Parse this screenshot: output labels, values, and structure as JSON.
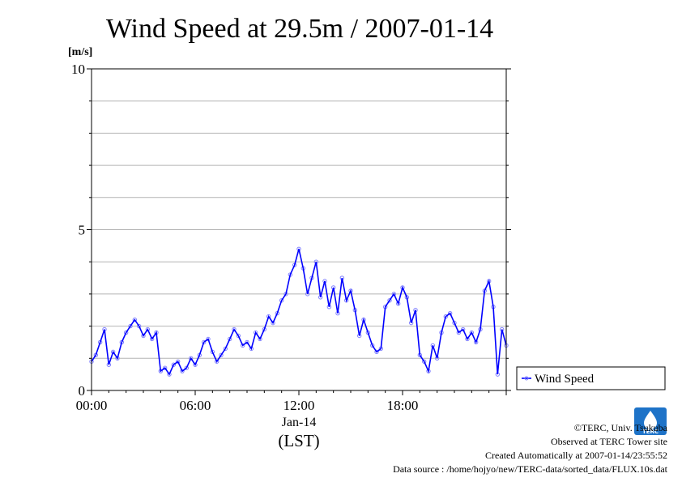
{
  "chart_data": {
    "type": "scatter",
    "title": "Wind Speed at 29.5m / 2007-01-14",
    "ylabel": "[m/s]",
    "xlabel": "(LST)",
    "date_label": "Jan-14",
    "ylim": [
      0,
      10
    ],
    "xlim": [
      0,
      24
    ],
    "yticks": [
      {
        "value": 0,
        "label": "0"
      },
      {
        "value": 5,
        "label": "5"
      },
      {
        "value": 10,
        "label": "10"
      }
    ],
    "xticks": [
      {
        "value": 0,
        "label": "00:00"
      },
      {
        "value": 6,
        "label": "06:00"
      },
      {
        "value": 12,
        "label": "12:00"
      },
      {
        "value": 18,
        "label": "18:00"
      }
    ],
    "grid": true,
    "legend": {
      "placement": "right",
      "label": "Wind Speed"
    },
    "colors": {
      "points": "#8080ff",
      "line": "#0000ff"
    },
    "series": [
      {
        "name": "Wind Speed",
        "x": [
          0.0,
          0.25,
          0.5,
          0.75,
          1.0,
          1.25,
          1.5,
          1.75,
          2.0,
          2.25,
          2.5,
          2.75,
          3.0,
          3.25,
          3.5,
          3.75,
          4.0,
          4.25,
          4.5,
          4.75,
          5.0,
          5.25,
          5.5,
          5.75,
          6.0,
          6.25,
          6.5,
          6.75,
          7.0,
          7.25,
          7.5,
          7.75,
          8.0,
          8.25,
          8.5,
          8.75,
          9.0,
          9.25,
          9.5,
          9.75,
          10.0,
          10.25,
          10.5,
          10.75,
          11.0,
          11.25,
          11.5,
          11.75,
          12.0,
          12.25,
          12.5,
          12.75,
          13.0,
          13.25,
          13.5,
          13.75,
          14.0,
          14.25,
          14.5,
          14.75,
          15.0,
          15.25,
          15.5,
          15.75,
          16.0,
          16.25,
          16.5,
          16.75,
          17.0,
          17.25,
          17.5,
          17.75,
          18.0,
          18.25,
          18.5,
          18.75,
          19.0,
          19.25,
          19.5,
          19.75,
          20.0,
          20.25,
          20.5,
          20.75,
          21.0,
          21.25,
          21.5,
          21.75,
          22.0,
          22.25,
          22.5,
          22.75,
          23.0,
          23.25,
          23.5,
          23.75,
          24.0
        ],
        "values": [
          0.9,
          1.1,
          1.5,
          1.9,
          0.8,
          1.2,
          1.0,
          1.5,
          1.8,
          2.0,
          2.2,
          2.0,
          1.7,
          1.9,
          1.6,
          1.8,
          0.6,
          0.7,
          0.5,
          0.8,
          0.9,
          0.6,
          0.7,
          1.0,
          0.8,
          1.1,
          1.5,
          1.6,
          1.2,
          0.9,
          1.1,
          1.3,
          1.6,
          1.9,
          1.7,
          1.4,
          1.5,
          1.3,
          1.8,
          1.6,
          1.9,
          2.3,
          2.1,
          2.4,
          2.8,
          3.0,
          3.6,
          3.9,
          4.4,
          3.8,
          3.0,
          3.5,
          4.0,
          2.9,
          3.4,
          2.6,
          3.2,
          2.4,
          3.5,
          2.8,
          3.1,
          2.5,
          1.7,
          2.2,
          1.8,
          1.4,
          1.2,
          1.3,
          2.6,
          2.8,
          3.0,
          2.7,
          3.2,
          2.9,
          2.1,
          2.5,
          1.1,
          0.9,
          0.6,
          1.4,
          1.0,
          1.8,
          2.3,
          2.4,
          2.1,
          1.8,
          1.9,
          1.6,
          1.8,
          1.5,
          1.9,
          3.1,
          3.4,
          2.6,
          0.5,
          1.9,
          1.4
        ]
      }
    ]
  },
  "footer": {
    "copyright": "©TERC, Univ. Tsukuba",
    "observed": "Observed at TERC Tower site",
    "created": "Created Automatically at 2007-01-14/23:55:52",
    "source": "Data source : /home/hojyo/new/TERC-data/sorted_data/FLUX.10s.dat"
  },
  "logo": {
    "text": "TERC",
    "icon": "terc-logo-icon",
    "color": "#1e73c8"
  }
}
